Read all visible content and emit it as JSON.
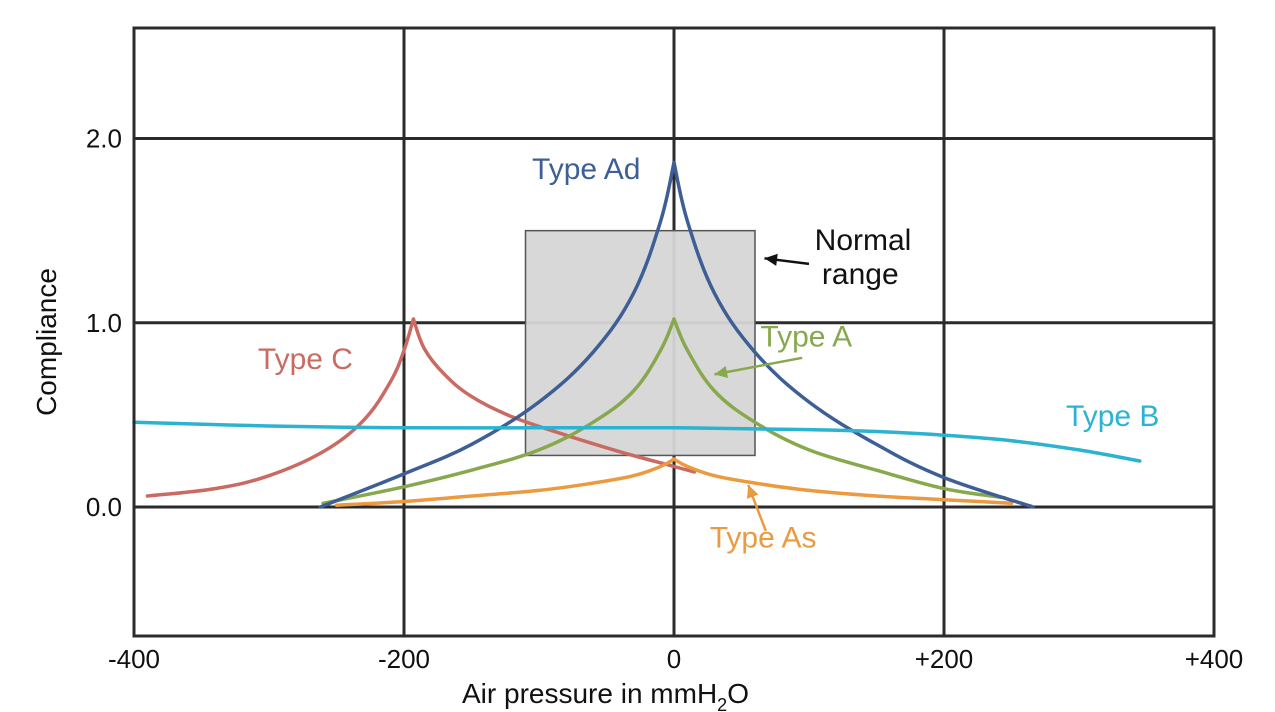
{
  "chart_data": {
    "type": "line",
    "title": "",
    "xlabel": "Air pressure in mmH",
    "xlabel_sub": "2",
    "xlabel_tail": "O",
    "ylabel": "Compliance",
    "xlim": [
      -400,
      400
    ],
    "ylim": [
      -0.7,
      2.6
    ],
    "x_gridlines": [
      -400,
      -200,
      0,
      200,
      400
    ],
    "y_gridlines": [
      0.0,
      1.0,
      2.0
    ],
    "x_tick_labels": [
      {
        "value": -400,
        "label": "-400"
      },
      {
        "value": -200,
        "label": "-200"
      },
      {
        "value": 0,
        "label": "0"
      },
      {
        "value": 200,
        "label": "+200"
      },
      {
        "value": 400,
        "label": "+400"
      }
    ],
    "y_tick_labels": [
      {
        "value": 0.0,
        "label": "0.0"
      },
      {
        "value": 1.0,
        "label": "1.0"
      },
      {
        "value": 2.0,
        "label": "2.0"
      }
    ],
    "normal_range": {
      "x": [
        -110,
        60
      ],
      "y": [
        0.28,
        1.5
      ],
      "color": "#d6d6d6",
      "label_line1": "Normal",
      "label_line2": "range"
    },
    "series": [
      {
        "name": "Type Ad",
        "label": "Type Ad",
        "color": "#3d5f95",
        "x": [
          -262,
          -200,
          -150,
          -100,
          -60,
          -30,
          -10,
          0,
          10,
          30,
          60,
          100,
          150,
          200,
          266
        ],
        "y": [
          0.0,
          0.18,
          0.34,
          0.57,
          0.84,
          1.16,
          1.55,
          1.87,
          1.55,
          1.16,
          0.84,
          0.57,
          0.34,
          0.16,
          0.0
        ]
      },
      {
        "name": "Type A",
        "label": "Type A",
        "color": "#88a84e",
        "x": [
          -260,
          -200,
          -150,
          -100,
          -60,
          -30,
          -10,
          0,
          10,
          30,
          60,
          100,
          150,
          200,
          245
        ],
        "y": [
          0.02,
          0.11,
          0.2,
          0.31,
          0.46,
          0.63,
          0.85,
          1.02,
          0.85,
          0.63,
          0.46,
          0.31,
          0.2,
          0.1,
          0.05
        ]
      },
      {
        "name": "Type As",
        "label": "Type As",
        "color": "#eb9a3f",
        "x": [
          -250,
          -200,
          -150,
          -100,
          -60,
          -30,
          -10,
          0,
          10,
          30,
          60,
          100,
          150,
          200,
          250
        ],
        "y": [
          0.01,
          0.03,
          0.06,
          0.09,
          0.13,
          0.17,
          0.22,
          0.26,
          0.22,
          0.17,
          0.13,
          0.09,
          0.06,
          0.04,
          0.02
        ]
      },
      {
        "name": "Type C",
        "label": "Type C",
        "color": "#c96a63",
        "x": [
          -390,
          -340,
          -300,
          -260,
          -230,
          -210,
          -200,
          -193,
          -185,
          -170,
          -150,
          -120,
          -80,
          -40,
          0,
          15
        ],
        "y": [
          0.06,
          0.1,
          0.17,
          0.3,
          0.47,
          0.68,
          0.85,
          1.02,
          0.86,
          0.72,
          0.6,
          0.49,
          0.39,
          0.3,
          0.22,
          0.19
        ]
      },
      {
        "name": "Type B",
        "label": "Type B",
        "color": "#2bb3d0",
        "x": [
          -400,
          -300,
          -200,
          -100,
          0,
          100,
          150,
          200,
          250,
          300,
          345
        ],
        "y": [
          0.46,
          0.44,
          0.43,
          0.43,
          0.43,
          0.42,
          0.41,
          0.39,
          0.36,
          0.31,
          0.25
        ]
      }
    ],
    "annotations": [
      {
        "series": "Type Ad",
        "text": "Type Ad",
        "at": [
          -65,
          1.78
        ]
      },
      {
        "series": "Type A",
        "text": "Type A",
        "at": [
          98,
          0.87
        ],
        "arrow_from": [
          95,
          0.81
        ],
        "arrow_to": [
          30,
          0.72
        ]
      },
      {
        "series": "Type As",
        "text": "Type As",
        "at": [
          66,
          -0.22
        ],
        "arrow_from": [
          68,
          -0.13
        ],
        "arrow_to": [
          55,
          0.12
        ]
      },
      {
        "series": "Type C",
        "text": "Type C",
        "at": [
          -273,
          0.75
        ]
      },
      {
        "series": "Type B",
        "text": "Type B",
        "at": [
          325,
          0.44
        ]
      }
    ],
    "normal_range_arrow": {
      "from": [
        100,
        1.32
      ],
      "to": [
        67,
        1.35
      ],
      "label_at": [
        140,
        1.45
      ]
    }
  }
}
